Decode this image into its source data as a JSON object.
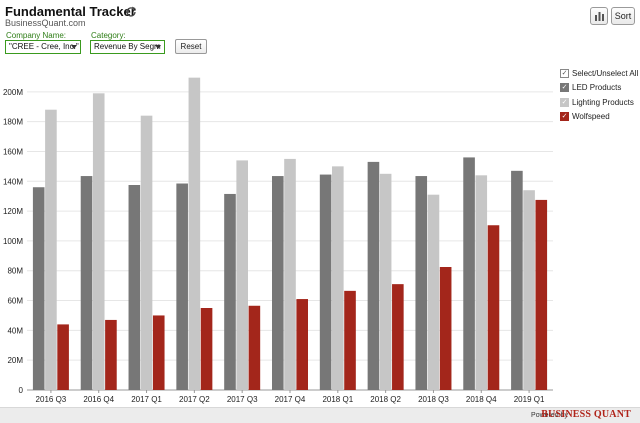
{
  "header": {
    "title": "Fundamental Tracker",
    "subtitle": "BusinessQuant.com",
    "sort_label": "Sort"
  },
  "controls": {
    "company_label": "Company Name:",
    "company_value": "\"CREE - Cree, Inc.\"",
    "category_label": "Category:",
    "category_value": "Revenue By Segm",
    "reset_label": "Reset"
  },
  "legend": {
    "select_all_label": "Select/Unselect All",
    "items": [
      "LED Products",
      "Lighting Products",
      "Wolfspeed"
    ]
  },
  "footer": {
    "powered_by": "Powered by",
    "brand": "BUSINESS QUANT"
  },
  "colors": {
    "led": "#777777",
    "lighting": "#c6c6c6",
    "wolfspeed": "#a3261b",
    "accent_green": "#3a9a1e"
  },
  "chart_data": {
    "type": "bar",
    "categories": [
      "2016 Q3",
      "2016 Q4",
      "2017 Q1",
      "2017 Q2",
      "2017 Q3",
      "2017 Q4",
      "2018 Q1",
      "2018 Q2",
      "2018 Q3",
      "2018 Q4",
      "2019 Q1"
    ],
    "series": [
      {
        "name": "LED Products",
        "color": "#777777",
        "values": [
          136,
          143.5,
          137.5,
          138.5,
          131.5,
          143.5,
          144.5,
          153,
          143.5,
          156,
          147
        ]
      },
      {
        "name": "Lighting Products",
        "color": "#c6c6c6",
        "values": [
          188,
          199,
          184,
          209.5,
          154,
          155,
          150,
          145,
          131,
          144,
          134
        ]
      },
      {
        "name": "Wolfspeed",
        "color": "#a3261b",
        "values": [
          44,
          47,
          50,
          55,
          56.5,
          61,
          66.5,
          71,
          82.5,
          110.5,
          127.5
        ]
      }
    ],
    "y_ticks": [
      "0",
      "20M",
      "40M",
      "60M",
      "80M",
      "100M",
      "120M",
      "140M",
      "160M",
      "180M",
      "200M"
    ],
    "ylim": [
      0,
      220
    ],
    "y_unit": "M",
    "grid": true,
    "legend_position": "right"
  }
}
